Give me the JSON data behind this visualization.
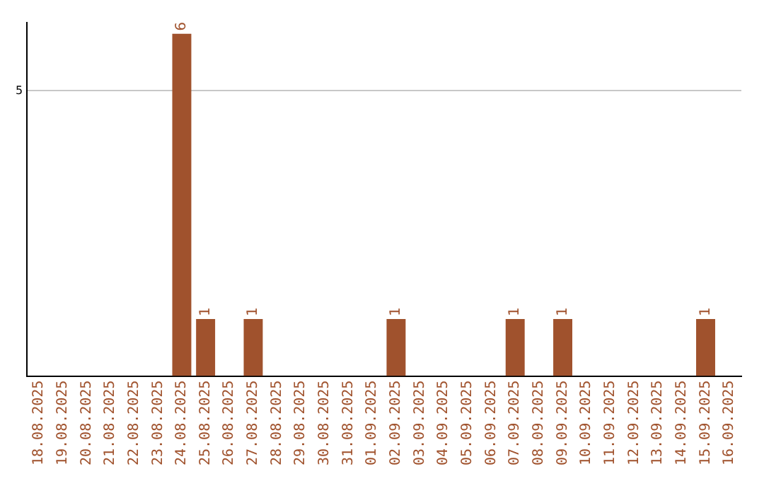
{
  "chart_data": {
    "type": "bar",
    "categories": [
      "18.08.2025",
      "19.08.2025",
      "20.08.2025",
      "21.08.2025",
      "22.08.2025",
      "23.08.2025",
      "24.08.2025",
      "25.08.2025",
      "26.08.2025",
      "27.08.2025",
      "28.08.2025",
      "29.08.2025",
      "30.08.2025",
      "31.08.2025",
      "01.09.2025",
      "02.09.2025",
      "03.09.2025",
      "04.09.2025",
      "05.09.2025",
      "06.09.2025",
      "07.09.2025",
      "08.09.2025",
      "09.09.2025",
      "10.09.2025",
      "11.09.2025",
      "12.09.2025",
      "13.09.2025",
      "14.09.2025",
      "15.09.2025",
      "16.09.2025"
    ],
    "values": [
      0,
      0,
      0,
      0,
      0,
      0,
      6,
      1,
      0,
      1,
      0,
      0,
      0,
      0,
      0,
      1,
      0,
      0,
      0,
      0,
      1,
      0,
      1,
      0,
      0,
      0,
      0,
      0,
      1,
      0
    ],
    "value_labels": [
      null,
      null,
      null,
      null,
      null,
      null,
      "6",
      "1",
      null,
      "1",
      null,
      null,
      null,
      null,
      null,
      "1",
      null,
      null,
      null,
      null,
      "1",
      null,
      "1",
      null,
      null,
      null,
      null,
      null,
      "1",
      null
    ],
    "color": "#a0522d",
    "ylim": [
      0,
      6.2
    ],
    "yticks": [
      5
    ],
    "grid": "y",
    "legend": false
  }
}
